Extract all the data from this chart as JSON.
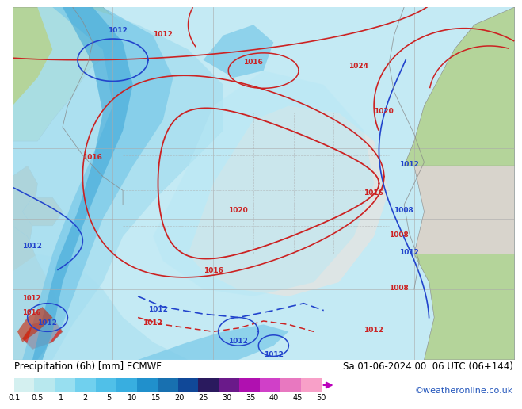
{
  "title_left": "Precipitation (6h) [mm] ECMWF",
  "title_right": "Sa 01-06-2024 00..06 UTC (06+144)",
  "copyright": "©weatheronline.co.uk",
  "colorbar_values": [
    "0.1",
    "0.5",
    "1",
    "2",
    "5",
    "10",
    "15",
    "20",
    "25",
    "30",
    "35",
    "40",
    "45",
    "50"
  ],
  "colorbar_colors": [
    "#d4f0f0",
    "#b8e8ee",
    "#98dff0",
    "#70d0ee",
    "#50c0e8",
    "#38aee0",
    "#2090cc",
    "#1870b0",
    "#104898",
    "#2a1a5e",
    "#6a1a8a",
    "#b010b0",
    "#d040c8",
    "#e878c0",
    "#f8a0c8"
  ],
  "map_ocean_color": "#c8ecf4",
  "map_prec_light": "#a8dff0",
  "map_prec_medium": "#78c8e8",
  "map_prec_dark": "#40a8d8",
  "land_green": "#b8d8a0",
  "land_red": "#d8a888",
  "land_grey": "#d8d4cc",
  "grid_color": "#a0a0a0",
  "contour_red": "#cc2222",
  "contour_blue": "#2244cc",
  "contour_grey": "#888888",
  "background_color": "#ffffff",
  "title_fontsize": 8.5,
  "copyright_fontsize": 8
}
